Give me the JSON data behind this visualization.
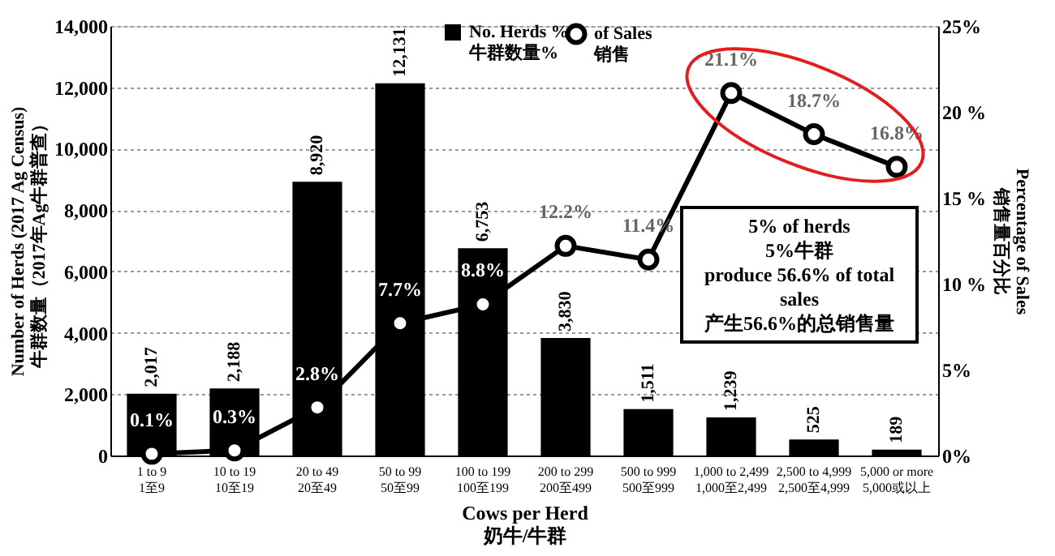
{
  "chart_data": {
    "type": "bar",
    "categories": [
      "1 to 9\n1至9",
      "10 to 19\n10至19",
      "20 to 49\n20至49",
      "50 to 99\n50至99",
      "100 to 199\n100至199",
      "200 to 299\n200至499",
      "500 to 999\n500至999",
      "1,000 to 2,499\n1,000至2,499",
      "2,500 to 4,999\n2,500至4,999",
      "5,000  or more\n5,000或以上"
    ],
    "series": [
      {
        "name": "No. Herds %\n牛群数量%",
        "color": "#000000",
        "values": [
          2017,
          2188,
          8920,
          12131,
          6753,
          3830,
          1511,
          1239,
          525,
          189
        ],
        "value_labels": [
          "2,017",
          "2,188",
          "8,920",
          "12,131",
          "6,753",
          "3,830",
          "1,511",
          "1,239",
          "525",
          "189"
        ]
      },
      {
        "name": "of Sales\n销售",
        "type": "line",
        "axis": "y2",
        "color": "#000000",
        "values": [
          0.1,
          0.3,
          2.8,
          7.7,
          8.8,
          12.2,
          11.4,
          21.1,
          18.7,
          16.8
        ],
        "value_labels": [
          "0.1%",
          "0.3%",
          "2.8%",
          "7.7%",
          "8.8%",
          "12.2%",
          "11.4%",
          "21.1%",
          "18.7%",
          "16.8%"
        ]
      }
    ],
    "xlabel": "Cows per Herd\n奶牛/牛群",
    "ylabel": "Number of Herds (2017 Ag Census)\n牛群数量（2017年Ag牛群普查）",
    "y2label": "Percentage of Sales\n销售量百分比",
    "ylim": [
      0,
      14000
    ],
    "yticks": [
      0,
      {
        "value": 2000,
        "label": "2,000"
      },
      {
        "value": 4000,
        "label": "4,000"
      },
      {
        "value": 6000,
        "label": "6,000"
      },
      {
        "value": 8000,
        "label": "8,000"
      },
      {
        "value": 10000,
        "label": "10,000"
      },
      {
        "value": 12000,
        "label": "12,000"
      },
      {
        "value": 14000,
        "label": "14,000"
      }
    ],
    "y2lim": [
      0,
      25
    ],
    "y2ticks": [
      {
        "value": 0,
        "label": "0%"
      },
      {
        "value": 5,
        "label": "5%"
      },
      {
        "value": 10,
        "label": "10 %"
      },
      {
        "value": 15,
        "label": "15 %"
      },
      {
        "value": 20,
        "label": "20 %"
      },
      {
        "value": 25,
        "label": "25%"
      }
    ],
    "annotations": [
      "5% of herds\n5%牛群\nproduce 56.6%  of total\nsales\n产生56.6%的总销售量"
    ],
    "grid": "y",
    "legend": "top right",
    "marker": "circle",
    "line_style": "solid"
  }
}
